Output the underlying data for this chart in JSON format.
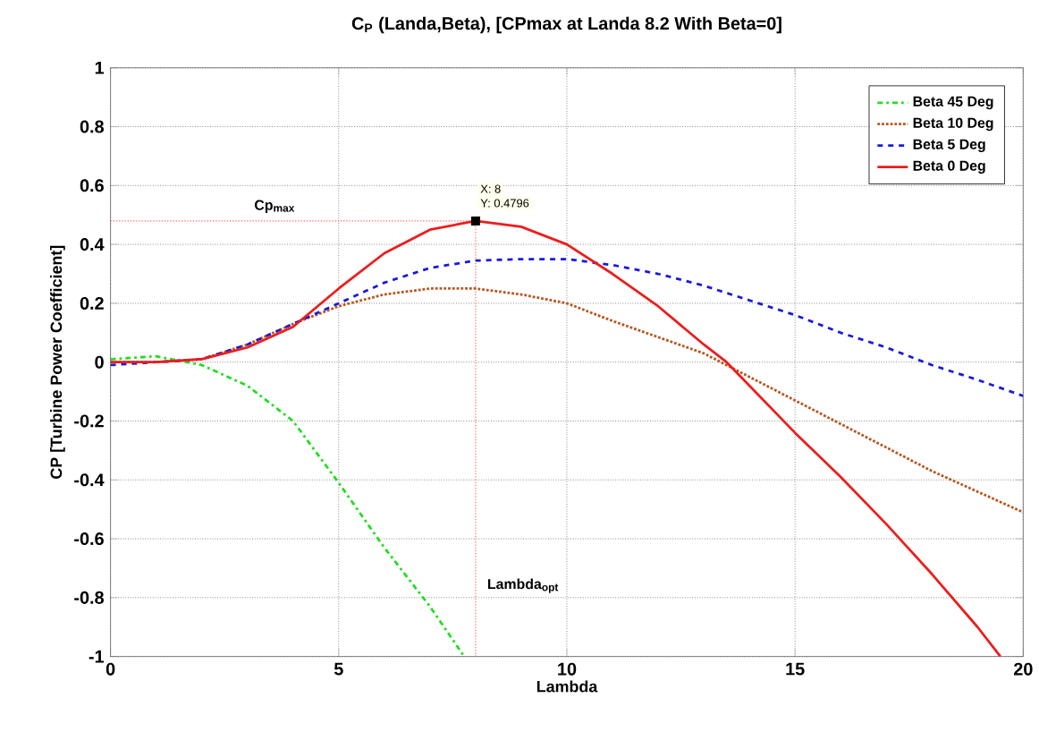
{
  "chart_data": {
    "type": "line",
    "title": "C$_{P}$ (Landa,Beta), [CPmax at Landa 8.2 With Beta=0]",
    "xlabel": "Lambda",
    "ylabel": "CP [Turbine Power Coefficient]",
    "xlim": [
      0,
      20
    ],
    "ylim": [
      -1,
      1
    ],
    "xticks": [
      0,
      5,
      10,
      15,
      20
    ],
    "yticks": [
      -1,
      -0.8,
      -0.6,
      -0.4,
      -0.2,
      0,
      0.2,
      0.4,
      0.6,
      0.8,
      1
    ],
    "grid": true,
    "legend": "top right",
    "series": [
      {
        "name": "Beta 45 Deg",
        "color": "#22dd22",
        "line_style": "dashdot",
        "x": [
          0,
          1,
          2,
          3,
          4,
          5,
          6,
          7,
          7.75
        ],
        "values": [
          0.01,
          0.02,
          -0.01,
          -0.08,
          -0.2,
          -0.41,
          -0.63,
          -0.83,
          -1
        ]
      },
      {
        "name": "Beta 10 Deg",
        "color": "#b8561e",
        "line_style": "dotted",
        "x": [
          0,
          1,
          2,
          3,
          4,
          5,
          6,
          7,
          8,
          9,
          10,
          11,
          12,
          13,
          14,
          15,
          16,
          17,
          18,
          19,
          20
        ],
        "values": [
          0,
          0,
          0.01,
          0.06,
          0.13,
          0.19,
          0.23,
          0.25,
          0.25,
          0.23,
          0.2,
          0.14,
          0.085,
          0.03,
          -0.05,
          -0.13,
          -0.21,
          -0.29,
          -0.37,
          -0.44,
          -0.51
        ]
      },
      {
        "name": "Beta 5 Deg",
        "color": "#1a1adc",
        "line_style": "dashed",
        "x": [
          0,
          1,
          2,
          3,
          4,
          5,
          6,
          7,
          8,
          9,
          10,
          11,
          12,
          13,
          14,
          15,
          16,
          17,
          18,
          19,
          20
        ],
        "values": [
          -0.01,
          0,
          0.01,
          0.06,
          0.13,
          0.2,
          0.27,
          0.32,
          0.345,
          0.35,
          0.35,
          0.33,
          0.3,
          0.26,
          0.21,
          0.16,
          0.1,
          0.05,
          -0.01,
          -0.06,
          -0.115
        ]
      },
      {
        "name": "Beta 0 Deg",
        "color": "#ee1c1c",
        "line_style": "solid",
        "x": [
          0,
          1,
          2,
          3,
          4,
          5,
          6,
          7,
          8,
          9,
          10,
          11,
          12,
          13,
          13.5,
          14,
          15,
          16,
          17,
          18,
          19,
          19.5
        ],
        "values": [
          0,
          0,
          0.01,
          0.05,
          0.12,
          0.25,
          0.37,
          0.45,
          0.48,
          0.46,
          0.4,
          0.3,
          0.19,
          0.06,
          0,
          -0.08,
          -0.24,
          -0.39,
          -0.55,
          -0.72,
          -0.9,
          -1
        ]
      }
    ],
    "ref_lines": [
      {
        "axis": "y",
        "value": 0.4796,
        "label": "Cp$_{max}$",
        "color": "#ff6060",
        "line_style": "dotted"
      },
      {
        "axis": "x",
        "value": 8,
        "label": "Lambda$_{opt}$",
        "color": "#ff6060",
        "line_style": "dotted"
      }
    ],
    "annotations": [
      {
        "text": "X: 8",
        "x": 8,
        "y": 0.4796
      },
      {
        "text": "Y: 0.4796",
        "x": 8,
        "y": 0.4796
      }
    ]
  }
}
